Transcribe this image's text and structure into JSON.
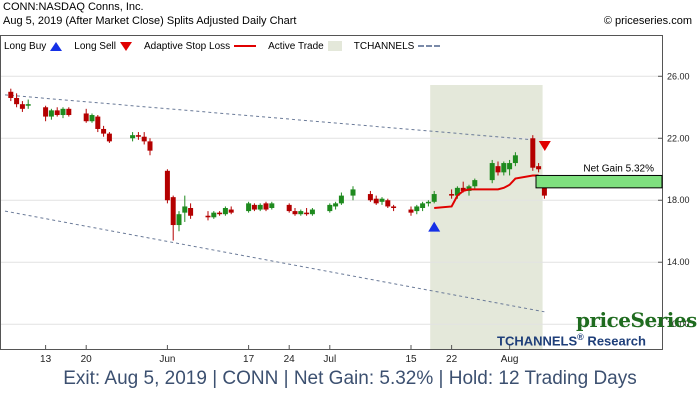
{
  "header": {
    "title": "CONN:NASDAQ Conns, Inc.",
    "subtitle": "Aug 5, 2019 (After Market Close)  Splits Adjusted Daily Chart",
    "copyright": "© priceseries.com"
  },
  "legend": [
    {
      "label": "Long Buy",
      "symbol": "blue-up-triangle-icon"
    },
    {
      "label": "Long Sell",
      "symbol": "red-down-triangle-icon"
    },
    {
      "label": "Adaptive Stop Loss",
      "symbol": "red-line-icon"
    },
    {
      "label": "Active Trade",
      "symbol": "green-box-icon"
    },
    {
      "label": "TCHANNELS",
      "symbol": "dashed-line-icon"
    }
  ],
  "annotation": {
    "net_gain": "Net Gain 5.32%"
  },
  "brand": {
    "priceseries": "priceSeries",
    "tchannels": "TCHANNELS",
    "reg": "®",
    "research": " Research"
  },
  "footer": {
    "text": "Exit: Aug 5, 2019 | CONN | Net Gain: 5.32% | Hold: 12 Trading Days"
  },
  "colors": {
    "up": "#1e8a1e",
    "down": "#b40000",
    "stop": "#e00000",
    "trade_bg": "#e4e8da",
    "channel": "#6a7a98",
    "buy": "#1530e6",
    "sell": "#e00000",
    "gain": "#7fe07f"
  },
  "chart_data": {
    "type": "candlestick",
    "title": "CONN:NASDAQ Conns, Inc.",
    "ylim": [
      8.4,
      28.6
    ],
    "y_ticks": [
      10.0,
      14.0,
      18.0,
      22.0,
      26.0
    ],
    "y_tick_labels": [
      "10.00",
      "14.00",
      "18.00",
      "22.00",
      "26.00"
    ],
    "x_tick_labels": [
      {
        "label": "13",
        "date": "2019-05-13"
      },
      {
        "label": "20",
        "date": "2019-05-20"
      },
      {
        "label": "Jun",
        "date": "2019-06-03"
      },
      {
        "label": "17",
        "date": "2019-06-17"
      },
      {
        "label": "24",
        "date": "2019-06-24"
      },
      {
        "label": "Jul",
        "date": "2019-07-01"
      },
      {
        "label": "15",
        "date": "2019-07-15"
      },
      {
        "label": "22",
        "date": "2019-07-22"
      },
      {
        "label": "Aug",
        "date": "2019-08-01"
      }
    ],
    "candles": [
      {
        "date": "2019-05-07",
        "o": 25.0,
        "h": 25.2,
        "l": 24.4,
        "c": 24.6
      },
      {
        "date": "2019-05-08",
        "o": 24.6,
        "h": 24.9,
        "l": 24.0,
        "c": 24.2
      },
      {
        "date": "2019-05-09",
        "o": 24.2,
        "h": 24.4,
        "l": 23.7,
        "c": 23.9
      },
      {
        "date": "2019-05-10",
        "o": 24.1,
        "h": 24.5,
        "l": 23.9,
        "c": 24.2
      },
      {
        "date": "2019-05-13",
        "o": 24.0,
        "h": 24.1,
        "l": 23.1,
        "c": 23.4
      },
      {
        "date": "2019-05-14",
        "o": 23.4,
        "h": 23.9,
        "l": 23.2,
        "c": 23.8
      },
      {
        "date": "2019-05-15",
        "o": 23.8,
        "h": 24.0,
        "l": 23.4,
        "c": 23.5
      },
      {
        "date": "2019-05-16",
        "o": 23.5,
        "h": 24.0,
        "l": 23.3,
        "c": 23.9
      },
      {
        "date": "2019-05-17",
        "o": 23.9,
        "h": 24.0,
        "l": 23.4,
        "c": 23.5
      },
      {
        "date": "2019-05-20",
        "o": 23.6,
        "h": 23.9,
        "l": 23.0,
        "c": 23.1
      },
      {
        "date": "2019-05-21",
        "o": 23.1,
        "h": 23.6,
        "l": 23.0,
        "c": 23.5
      },
      {
        "date": "2019-05-22",
        "o": 23.4,
        "h": 23.5,
        "l": 22.4,
        "c": 22.6
      },
      {
        "date": "2019-05-23",
        "o": 22.6,
        "h": 22.8,
        "l": 22.1,
        "c": 22.3
      },
      {
        "date": "2019-05-24",
        "o": 22.3,
        "h": 22.4,
        "l": 21.7,
        "c": 21.8
      },
      {
        "date": "2019-05-28",
        "o": 22.0,
        "h": 22.4,
        "l": 21.8,
        "c": 22.2
      },
      {
        "date": "2019-05-29",
        "o": 22.2,
        "h": 22.4,
        "l": 21.9,
        "c": 22.1
      },
      {
        "date": "2019-05-30",
        "o": 22.1,
        "h": 22.4,
        "l": 21.6,
        "c": 21.8
      },
      {
        "date": "2019-05-31",
        "o": 21.8,
        "h": 22.0,
        "l": 20.9,
        "c": 21.2
      },
      {
        "date": "2019-06-03",
        "o": 19.9,
        "h": 20.0,
        "l": 17.8,
        "c": 18.0
      },
      {
        "date": "2019-06-04",
        "o": 18.2,
        "h": 18.3,
        "l": 15.4,
        "c": 16.4
      },
      {
        "date": "2019-06-05",
        "o": 16.4,
        "h": 17.3,
        "l": 16.0,
        "c": 17.1
      },
      {
        "date": "2019-06-06",
        "o": 17.2,
        "h": 18.3,
        "l": 16.6,
        "c": 17.6
      },
      {
        "date": "2019-06-07",
        "o": 17.5,
        "h": 17.8,
        "l": 16.8,
        "c": 17.0
      },
      {
        "date": "2019-06-10",
        "o": 17.0,
        "h": 17.3,
        "l": 16.7,
        "c": 16.9
      },
      {
        "date": "2019-06-11",
        "o": 16.9,
        "h": 17.3,
        "l": 16.8,
        "c": 17.2
      },
      {
        "date": "2019-06-12",
        "o": 17.2,
        "h": 17.3,
        "l": 17.0,
        "c": 17.1
      },
      {
        "date": "2019-06-13",
        "o": 17.1,
        "h": 17.6,
        "l": 17.0,
        "c": 17.5
      },
      {
        "date": "2019-06-14",
        "o": 17.4,
        "h": 17.6,
        "l": 17.1,
        "c": 17.2
      },
      {
        "date": "2019-06-17",
        "o": 17.3,
        "h": 17.9,
        "l": 17.2,
        "c": 17.8
      },
      {
        "date": "2019-06-18",
        "o": 17.7,
        "h": 17.8,
        "l": 17.3,
        "c": 17.4
      },
      {
        "date": "2019-06-19",
        "o": 17.4,
        "h": 17.8,
        "l": 17.3,
        "c": 17.7
      },
      {
        "date": "2019-06-20",
        "o": 17.8,
        "h": 17.9,
        "l": 17.3,
        "c": 17.4
      },
      {
        "date": "2019-06-21",
        "o": 17.5,
        "h": 17.9,
        "l": 17.4,
        "c": 17.8
      },
      {
        "date": "2019-06-24",
        "o": 17.7,
        "h": 17.8,
        "l": 17.2,
        "c": 17.3
      },
      {
        "date": "2019-06-25",
        "o": 17.3,
        "h": 17.5,
        "l": 17.0,
        "c": 17.1
      },
      {
        "date": "2019-06-26",
        "o": 17.1,
        "h": 17.4,
        "l": 17.0,
        "c": 17.3
      },
      {
        "date": "2019-06-27",
        "o": 17.2,
        "h": 17.5,
        "l": 17.0,
        "c": 17.1
      },
      {
        "date": "2019-06-28",
        "o": 17.1,
        "h": 17.5,
        "l": 17.0,
        "c": 17.4
      },
      {
        "date": "2019-07-01",
        "o": 17.3,
        "h": 17.8,
        "l": 17.2,
        "c": 17.7
      },
      {
        "date": "2019-07-02",
        "o": 17.6,
        "h": 17.9,
        "l": 17.4,
        "c": 17.8
      },
      {
        "date": "2019-07-03",
        "o": 17.8,
        "h": 18.5,
        "l": 17.7,
        "c": 18.3
      },
      {
        "date": "2019-07-05",
        "o": 18.3,
        "h": 18.9,
        "l": 18.0,
        "c": 18.7
      },
      {
        "date": "2019-07-08",
        "o": 18.4,
        "h": 18.6,
        "l": 17.9,
        "c": 18.0
      },
      {
        "date": "2019-07-09",
        "o": 18.1,
        "h": 18.3,
        "l": 17.7,
        "c": 17.8
      },
      {
        "date": "2019-07-10",
        "o": 17.9,
        "h": 18.2,
        "l": 17.7,
        "c": 18.1
      },
      {
        "date": "2019-07-11",
        "o": 18.0,
        "h": 18.1,
        "l": 17.5,
        "c": 17.6
      },
      {
        "date": "2019-07-12",
        "o": 17.6,
        "h": 17.7,
        "l": 17.3,
        "c": 17.5
      },
      {
        "date": "2019-07-15",
        "o": 17.4,
        "h": 17.6,
        "l": 17.0,
        "c": 17.2
      },
      {
        "date": "2019-07-16",
        "o": 17.3,
        "h": 17.7,
        "l": 17.1,
        "c": 17.6
      },
      {
        "date": "2019-07-17",
        "o": 17.5,
        "h": 17.9,
        "l": 17.3,
        "c": 17.8
      },
      {
        "date": "2019-07-18",
        "o": 17.8,
        "h": 18.0,
        "l": 17.6,
        "c": 17.9
      },
      {
        "date": "2019-07-19",
        "o": 17.9,
        "h": 18.6,
        "l": 17.8,
        "c": 18.4
      },
      {
        "date": "2019-07-22",
        "o": 18.4,
        "h": 18.7,
        "l": 18.1,
        "c": 18.3
      },
      {
        "date": "2019-07-23",
        "o": 18.3,
        "h": 18.9,
        "l": 18.1,
        "c": 18.8
      },
      {
        "date": "2019-07-24",
        "o": 18.8,
        "h": 19.2,
        "l": 18.5,
        "c": 18.6
      },
      {
        "date": "2019-07-25",
        "o": 18.6,
        "h": 19.0,
        "l": 18.3,
        "c": 18.9
      },
      {
        "date": "2019-07-26",
        "o": 18.9,
        "h": 19.4,
        "l": 18.7,
        "c": 19.3
      },
      {
        "date": "2019-07-29",
        "o": 19.3,
        "h": 20.6,
        "l": 19.1,
        "c": 20.4
      },
      {
        "date": "2019-07-30",
        "o": 20.2,
        "h": 20.5,
        "l": 19.6,
        "c": 19.8
      },
      {
        "date": "2019-07-31",
        "o": 19.8,
        "h": 20.5,
        "l": 19.6,
        "c": 20.4
      },
      {
        "date": "2019-08-01",
        "o": 20.0,
        "h": 20.6,
        "l": 19.6,
        "c": 20.4
      },
      {
        "date": "2019-08-02",
        "o": 20.4,
        "h": 21.1,
        "l": 20.2,
        "c": 20.9
      },
      {
        "date": "2019-08-05",
        "o": 22.0,
        "h": 22.2,
        "l": 19.9,
        "c": 20.1
      },
      {
        "date": "2019-08-06",
        "o": 20.2,
        "h": 20.4,
        "l": 19.8,
        "c": 20.0
      },
      {
        "date": "2019-08-07",
        "o": 19.4,
        "h": 19.6,
        "l": 18.1,
        "c": 18.3
      }
    ],
    "adaptive_stop": [
      {
        "date": "2019-07-19",
        "value": 17.5
      },
      {
        "date": "2019-07-22",
        "value": 17.6
      },
      {
        "date": "2019-07-23",
        "value": 18.3
      },
      {
        "date": "2019-07-24",
        "value": 18.6
      },
      {
        "date": "2019-07-25",
        "value": 18.7
      },
      {
        "date": "2019-07-26",
        "value": 18.7
      },
      {
        "date": "2019-07-29",
        "value": 18.7
      },
      {
        "date": "2019-07-30",
        "value": 18.7
      },
      {
        "date": "2019-07-31",
        "value": 18.8
      },
      {
        "date": "2019-08-01",
        "value": 19.0
      },
      {
        "date": "2019-08-02",
        "value": 19.4
      },
      {
        "date": "2019-08-05",
        "value": 19.6
      },
      {
        "date": "2019-08-06",
        "value": 19.6
      }
    ],
    "active_trade": {
      "start": "2019-07-19",
      "end": "2019-08-06"
    },
    "long_buy": {
      "date": "2019-07-19",
      "price": 16.3
    },
    "long_sell": {
      "date": "2019-08-05",
      "price": 21.5
    },
    "channels": [
      {
        "name": "upper",
        "start": {
          "date": "2019-05-06",
          "value": 24.8
        },
        "end": {
          "date": "2019-08-05",
          "value": 21.9
        }
      },
      {
        "name": "lower",
        "start": {
          "date": "2019-05-06",
          "value": 17.3
        },
        "end": {
          "date": "2019-08-07",
          "value": 10.8
        }
      }
    ],
    "net_gain_zone": {
      "low": 18.8,
      "high": 19.6,
      "pct": 5.32
    }
  }
}
